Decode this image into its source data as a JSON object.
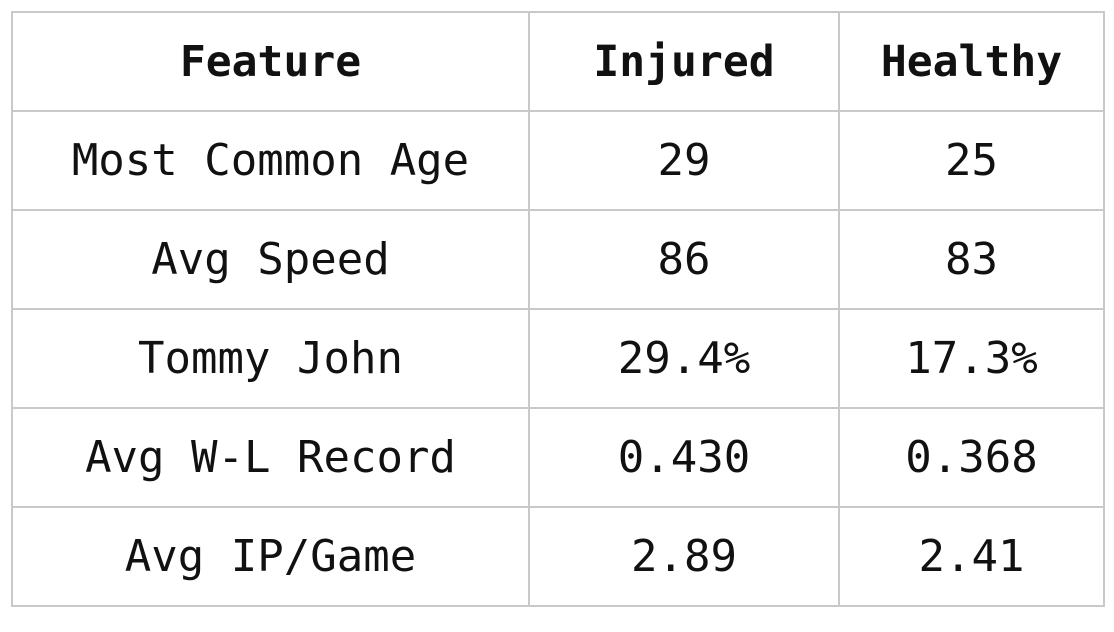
{
  "chart_data": {
    "type": "table",
    "columns": [
      "Feature",
      "Injured",
      "Healthy"
    ],
    "rows": [
      [
        "Most Common Age",
        "29",
        "25"
      ],
      [
        "Avg Speed",
        "86",
        "83"
      ],
      [
        "Tommy John",
        "29.4%",
        "17.3%"
      ],
      [
        "Avg W-L Record",
        "0.430",
        "0.368"
      ],
      [
        "Avg IP/Game",
        "2.89",
        "2.41"
      ]
    ]
  },
  "colors": {
    "border": "#c9c9c9",
    "text": "#111111",
    "background": "#ffffff"
  }
}
